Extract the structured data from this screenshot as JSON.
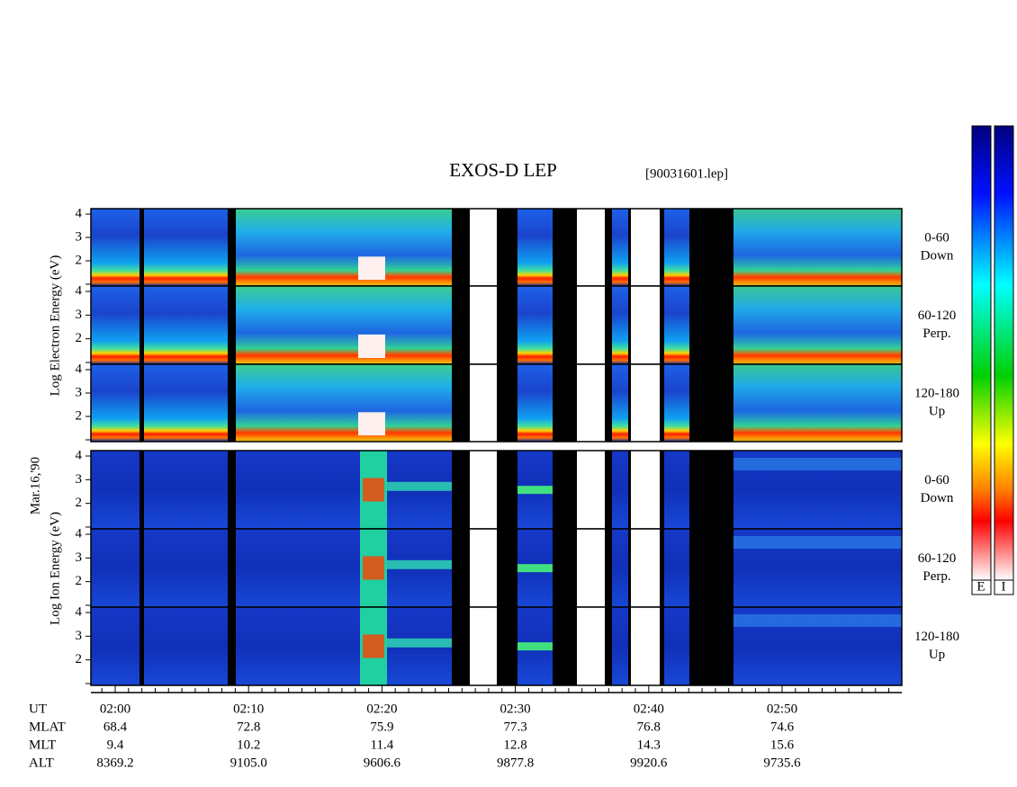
{
  "title": "EXOS-D LEP",
  "file_label": "[90031601.lep]",
  "date_label": "Mar.16,'90",
  "electron_ylabel": "Log Electron Energy (eV)",
  "ion_ylabel": "Log Ion Energy (eV)",
  "yticks": [
    2,
    3,
    4
  ],
  "angle_bins": [
    {
      "range": "0-60",
      "dir": "Down"
    },
    {
      "range": "60-120",
      "dir": "Perp."
    },
    {
      "range": "120-180",
      "dir": "Up"
    }
  ],
  "time_axis": {
    "labels": [
      "02:00",
      "02:10",
      "02:20",
      "02:30",
      "02:40",
      "02:50"
    ],
    "rows": [
      {
        "name": "UT",
        "values": []
      },
      {
        "name": "MLAT",
        "values": [
          "68.4",
          "72.8",
          "75.9",
          "77.3",
          "76.8",
          "74.6"
        ]
      },
      {
        "name": "MLT",
        "values": [
          "9.4",
          "10.2",
          "11.4",
          "12.8",
          "14.3",
          "15.6"
        ]
      },
      {
        "name": "ALT",
        "values": [
          "8369.2",
          "9105.0",
          "9606.6",
          "9877.8",
          "9920.6",
          "9735.6"
        ]
      }
    ]
  },
  "colorbar": {
    "labels": [
      "E",
      "I"
    ]
  }
}
